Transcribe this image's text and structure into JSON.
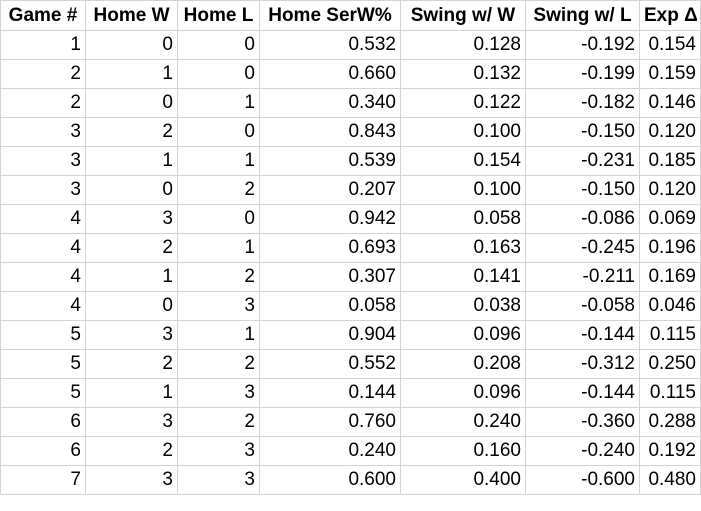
{
  "table": {
    "headers": [
      "Game #",
      "Home W",
      "Home L",
      "Home SerW%",
      "Swing w/ W",
      "Swing w/ L",
      "Exp Δ"
    ],
    "rows": [
      [
        "1",
        "0",
        "0",
        "0.532",
        "0.128",
        "-0.192",
        "0.154"
      ],
      [
        "2",
        "1",
        "0",
        "0.660",
        "0.132",
        "-0.199",
        "0.159"
      ],
      [
        "2",
        "0",
        "1",
        "0.340",
        "0.122",
        "-0.182",
        "0.146"
      ],
      [
        "3",
        "2",
        "0",
        "0.843",
        "0.100",
        "-0.150",
        "0.120"
      ],
      [
        "3",
        "1",
        "1",
        "0.539",
        "0.154",
        "-0.231",
        "0.185"
      ],
      [
        "3",
        "0",
        "2",
        "0.207",
        "0.100",
        "-0.150",
        "0.120"
      ],
      [
        "4",
        "3",
        "0",
        "0.942",
        "0.058",
        "-0.086",
        "0.069"
      ],
      [
        "4",
        "2",
        "1",
        "0.693",
        "0.163",
        "-0.245",
        "0.196"
      ],
      [
        "4",
        "1",
        "2",
        "0.307",
        "0.141",
        "-0.211",
        "0.169"
      ],
      [
        "4",
        "0",
        "3",
        "0.058",
        "0.038",
        "-0.058",
        "0.046"
      ],
      [
        "5",
        "3",
        "1",
        "0.904",
        "0.096",
        "-0.144",
        "0.115"
      ],
      [
        "5",
        "2",
        "2",
        "0.552",
        "0.208",
        "-0.312",
        "0.250"
      ],
      [
        "5",
        "1",
        "3",
        "0.144",
        "0.096",
        "-0.144",
        "0.115"
      ],
      [
        "6",
        "3",
        "2",
        "0.760",
        "0.240",
        "-0.360",
        "0.288"
      ],
      [
        "6",
        "2",
        "3",
        "0.240",
        "0.160",
        "-0.240",
        "0.192"
      ],
      [
        "7",
        "3",
        "3",
        "0.600",
        "0.400",
        "-0.600",
        "0.480"
      ]
    ]
  }
}
